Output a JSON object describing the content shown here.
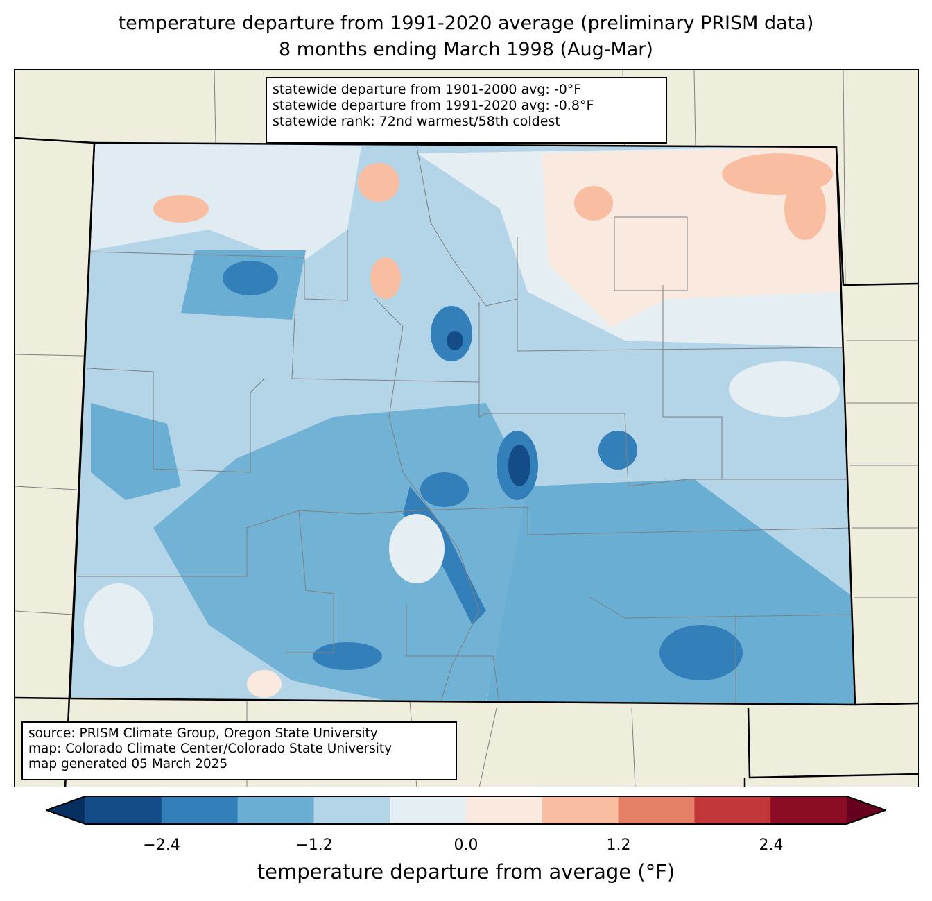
{
  "title": {
    "line1": "temperature departure from 1991-2020 average (preliminary PRISM data)",
    "line2": "8 months ending March 1998 (Aug-Mar)"
  },
  "stats": {
    "line1": "statewide departure from 1901-2000 avg: -0°F",
    "line2": "statewide departure from 1991-2020 avg: -0.8°F",
    "line3": "statewide rank: 72nd warmest/58th coldest"
  },
  "credits": {
    "line1": "source: PRISM Climate Group, Oregon State University",
    "line2": "map: Colorado Climate Center/Colorado State University",
    "line3": "map generated 05 March 2025"
  },
  "colorbar": {
    "label": "temperature departure from average (°F)",
    "ticks": [
      "−2.4",
      "−1.2",
      "0.0",
      "1.2",
      "2.4"
    ],
    "levels": [
      -3.0,
      -2.4,
      -1.8,
      -1.2,
      -0.6,
      0.0,
      0.6,
      1.2,
      1.8,
      2.4,
      3.0
    ],
    "colors": [
      "#144c87",
      "#327fba",
      "#6aaed3",
      "#b3d5e7",
      "#e5eef3",
      "#f9e9df",
      "#f9bda2",
      "#e48066",
      "#c2383a",
      "#8a0c25"
    ],
    "under_color": "#053061",
    "over_color": "#67001f"
  },
  "map_colors": {
    "land": "#efeddc",
    "state_border": "#000000",
    "county_border": "#808080"
  }
}
